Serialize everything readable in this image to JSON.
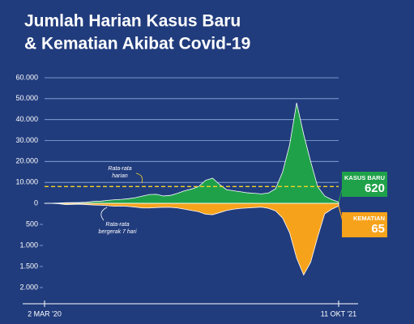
{
  "chart_data": {
    "type": "mirrored-area",
    "title": [
      "Jumlah Harian Kasus Baru",
      "& Kematian Akibat Covid-19"
    ],
    "categories": [
      "2 MAR '20",
      null,
      null,
      null,
      null,
      null,
      null,
      null,
      null,
      null,
      null,
      null,
      null,
      null,
      null,
      null,
      null,
      null,
      null,
      null,
      null,
      null,
      null,
      null,
      null,
      null,
      null,
      null,
      null,
      null,
      null,
      null,
      null,
      null,
      null,
      null,
      null,
      null,
      null,
      null,
      null,
      null,
      "11 OKT '21"
    ],
    "series": [
      {
        "name": "KASUS BARU",
        "color": "#1fa14a",
        "values": [
          2,
          20,
          130,
          300,
          350,
          400,
          500,
          900,
          1000,
          1400,
          1700,
          1900,
          2200,
          2700,
          3500,
          4200,
          4300,
          3500,
          3800,
          4800,
          6000,
          6800,
          8000,
          11000,
          12000,
          9000,
          6500,
          6000,
          5500,
          5000,
          4800,
          4500,
          5000,
          7000,
          15000,
          28000,
          48000,
          33000,
          20000,
          8000,
          3500,
          1800,
          620
        ]
      },
      {
        "name": "KEMATIAN",
        "color": "#f7a21b",
        "axis": "y2",
        "values": [
          0,
          2,
          10,
          30,
          25,
          20,
          30,
          40,
          45,
          55,
          70,
          65,
          75,
          90,
          110,
          110,
          100,
          95,
          95,
          110,
          140,
          170,
          200,
          260,
          270,
          220,
          170,
          140,
          120,
          110,
          100,
          90,
          120,
          180,
          350,
          700,
          1300,
          1700,
          1400,
          800,
          250,
          140,
          65
        ]
      }
    ],
    "ylim": [
      0,
      60000
    ],
    "yticks": [
      0,
      {
        "value": 10000,
        "label": "10.000"
      },
      {
        "value": 20000,
        "label": "20.000"
      },
      {
        "value": 30000,
        "label": "30.000"
      },
      {
        "value": 40000,
        "label": "40.000"
      },
      {
        "value": 50000,
        "label": "50.000"
      },
      {
        "value": 60000,
        "label": "60.000"
      }
    ],
    "y2lim": [
      0,
      2000
    ],
    "y2ticks": [
      500,
      {
        "value": 1000,
        "label": "1.000"
      },
      {
        "value": 1500,
        "label": "1.500"
      },
      {
        "value": 2000,
        "label": "2.000"
      }
    ],
    "grid": true,
    "reference_line": {
      "value": 8000,
      "label": [
        "Rata-rata",
        "harian"
      ],
      "color": "#f5d423"
    },
    "annotation": [
      "Rata-rata",
      "bergerak 7 hari"
    ]
  }
}
